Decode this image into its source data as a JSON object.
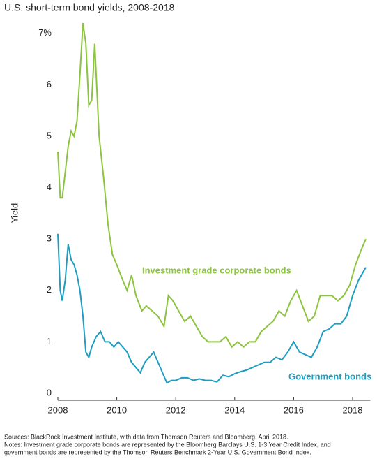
{
  "chart_data": {
    "type": "line",
    "title": "U.S. short-term bond yields, 2008-2018",
    "y_label": "Yield",
    "xlim": [
      2008,
      2018.6
    ],
    "xticks": [
      2008,
      2010,
      2012,
      2014,
      2016,
      2018
    ],
    "ylim": [
      0,
      7.25
    ],
    "yticks": [
      0,
      1,
      2,
      3,
      4,
      5,
      6,
      {
        "value": 7,
        "label": "7%"
      }
    ],
    "grid": false,
    "annotations": [
      {
        "text": "Investment grade corporate bonds",
        "series": 0
      },
      {
        "text": "Government bonds",
        "series": 1
      }
    ],
    "series": [
      {
        "name": "Investment grade corporate bonds",
        "color": "#8cc43f",
        "x": [
          2008.0,
          2008.08,
          2008.15,
          2008.25,
          2008.35,
          2008.45,
          2008.55,
          2008.65,
          2008.75,
          2008.85,
          2008.95,
          2009.05,
          2009.15,
          2009.25,
          2009.4,
          2009.55,
          2009.7,
          2009.85,
          2010.0,
          2010.2,
          2010.35,
          2010.5,
          2010.65,
          2010.85,
          2011.0,
          2011.2,
          2011.4,
          2011.6,
          2011.75,
          2011.9,
          2012.1,
          2012.3,
          2012.5,
          2012.7,
          2012.9,
          2013.1,
          2013.3,
          2013.5,
          2013.7,
          2013.9,
          2014.1,
          2014.3,
          2014.5,
          2014.7,
          2014.9,
          2015.1,
          2015.3,
          2015.5,
          2015.7,
          2015.9,
          2016.1,
          2016.3,
          2016.5,
          2016.7,
          2016.9,
          2017.1,
          2017.3,
          2017.5,
          2017.7,
          2017.9,
          2018.1,
          2018.3,
          2018.45
        ],
        "values": [
          4.7,
          3.8,
          3.8,
          4.3,
          4.8,
          5.1,
          5.0,
          5.3,
          6.2,
          7.2,
          6.8,
          5.6,
          5.7,
          6.8,
          5.0,
          4.2,
          3.3,
          2.7,
          2.5,
          2.2,
          2.0,
          2.3,
          1.9,
          1.6,
          1.7,
          1.6,
          1.5,
          1.3,
          1.9,
          1.8,
          1.6,
          1.4,
          1.5,
          1.3,
          1.1,
          1.0,
          1.0,
          1.0,
          1.1,
          0.9,
          1.0,
          0.9,
          1.0,
          1.0,
          1.2,
          1.3,
          1.4,
          1.6,
          1.5,
          1.8,
          2.0,
          1.7,
          1.4,
          1.5,
          1.9,
          1.9,
          1.9,
          1.8,
          1.9,
          2.1,
          2.5,
          2.8,
          3.0
        ]
      },
      {
        "name": "Government bonds",
        "color": "#1f9dc0",
        "x": [
          2008.0,
          2008.08,
          2008.15,
          2008.25,
          2008.35,
          2008.45,
          2008.55,
          2008.65,
          2008.75,
          2008.85,
          2008.95,
          2009.05,
          2009.15,
          2009.3,
          2009.45,
          2009.6,
          2009.75,
          2009.9,
          2010.05,
          2010.2,
          2010.35,
          2010.5,
          2010.65,
          2010.8,
          2010.95,
          2011.1,
          2011.25,
          2011.4,
          2011.55,
          2011.7,
          2011.85,
          2012.0,
          2012.2,
          2012.4,
          2012.6,
          2012.8,
          2013.0,
          2013.2,
          2013.4,
          2013.6,
          2013.8,
          2014.0,
          2014.2,
          2014.4,
          2014.6,
          2014.8,
          2015.0,
          2015.2,
          2015.4,
          2015.6,
          2015.8,
          2016.0,
          2016.2,
          2016.4,
          2016.6,
          2016.8,
          2017.0,
          2017.2,
          2017.4,
          2017.6,
          2017.8,
          2018.0,
          2018.2,
          2018.45
        ],
        "values": [
          3.1,
          2.0,
          1.8,
          2.2,
          2.9,
          2.6,
          2.5,
          2.3,
          2.0,
          1.5,
          0.8,
          0.7,
          0.9,
          1.1,
          1.2,
          1.0,
          1.0,
          0.9,
          1.0,
          0.9,
          0.8,
          0.6,
          0.5,
          0.4,
          0.6,
          0.7,
          0.8,
          0.6,
          0.4,
          0.2,
          0.25,
          0.25,
          0.3,
          0.3,
          0.25,
          0.28,
          0.25,
          0.25,
          0.22,
          0.35,
          0.32,
          0.38,
          0.42,
          0.45,
          0.5,
          0.55,
          0.6,
          0.6,
          0.7,
          0.65,
          0.8,
          1.0,
          0.8,
          0.75,
          0.7,
          0.9,
          1.2,
          1.25,
          1.35,
          1.35,
          1.5,
          1.9,
          2.2,
          2.45
        ]
      }
    ],
    "sources": "Sources: BlackRock Investment Institute, with data from Thomson Reuters and Bloomberg. April 2018.",
    "notes": [
      "Notes: Investment grade corporate bonds are represented by the Bloomberg Barclays U.S. 1-3 Year Credit Index, and",
      "government bonds are represented by the Thomson Reuters Benchmark 2-Year U.S. Government Bond Index."
    ]
  }
}
